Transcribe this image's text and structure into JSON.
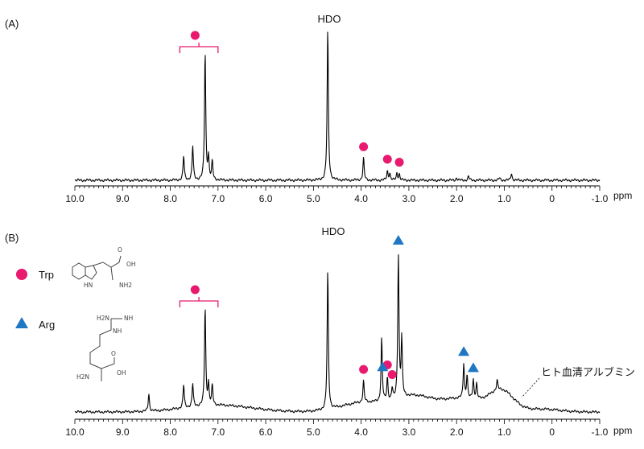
{
  "chart_data": [
    {
      "type": "line",
      "panel_label": "(A)",
      "xlabel": "ppm",
      "xlim": [
        10.0,
        -1.0
      ],
      "x_reversed": true,
      "ticks": [
        "10.0",
        "9.0",
        "8.0",
        "7.0",
        "6.0",
        "5.0",
        "4.0",
        "3.0",
        "2.0",
        "1.0",
        "0",
        "-1.0"
      ],
      "annotations": [
        {
          "text": "HDO",
          "x": 4.7
        }
      ],
      "markers": [
        {
          "symbol": "circle",
          "x": 7.48,
          "bracket": [
            7.8,
            7.0
          ]
        },
        {
          "symbol": "circle",
          "x": 3.95
        },
        {
          "symbol": "circle",
          "x": 3.45
        },
        {
          "symbol": "circle",
          "x": 3.2
        }
      ],
      "peaks": [
        {
          "x": 7.72,
          "height": 0.12
        },
        {
          "x": 7.53,
          "height": 0.17
        },
        {
          "x": 7.27,
          "height": 0.64
        },
        {
          "x": 7.2,
          "height": 0.11
        },
        {
          "x": 7.12,
          "height": 0.09
        },
        {
          "x": 4.7,
          "height": 0.75
        },
        {
          "x": 3.95,
          "height": 0.11
        },
        {
          "x": 3.45,
          "height": 0.045
        },
        {
          "x": 3.4,
          "height": 0.035
        },
        {
          "x": 3.25,
          "height": 0.035
        },
        {
          "x": 3.2,
          "height": 0.03
        },
        {
          "x": 2.0,
          "height": 0.012
        },
        {
          "x": 1.75,
          "height": 0.02
        },
        {
          "x": 1.1,
          "height": 0.012
        },
        {
          "x": 0.85,
          "height": 0.035
        }
      ]
    },
    {
      "type": "line",
      "panel_label": "(B)",
      "xlabel": "ppm",
      "xlim": [
        10.0,
        -1.0
      ],
      "x_reversed": true,
      "ticks": [
        "10.0",
        "9.0",
        "8.0",
        "7.0",
        "6.0",
        "5.0",
        "4.0",
        "3.0",
        "2.0",
        "1.0",
        "0",
        "-1.0"
      ],
      "annotations": [
        {
          "text": "HDO",
          "x": 4.7
        },
        {
          "text": "ヒト血清アルブミン",
          "x": 0.0
        }
      ],
      "legend": [
        {
          "symbol": "circle",
          "label": "Trp",
          "color": "#e8196e"
        },
        {
          "symbol": "triangle",
          "label": "Arg",
          "color": "#1f77c4"
        }
      ],
      "structures": {
        "trp": [
          "O",
          "OH",
          "NH2",
          "HN"
        ],
        "arg": [
          "H2N",
          "NH",
          "NH",
          "H2N",
          "OH",
          "O"
        ]
      },
      "markers": [
        {
          "symbol": "circle",
          "x": 7.48,
          "bracket": [
            7.8,
            7.0
          ]
        },
        {
          "symbol": "circle",
          "x": 3.95
        },
        {
          "symbol": "circle",
          "x": 3.45
        },
        {
          "symbol": "circle",
          "x": 3.35
        },
        {
          "symbol": "triangle",
          "x": 3.22
        },
        {
          "symbol": "triangle",
          "x": 3.55
        },
        {
          "symbol": "triangle",
          "x": 1.85
        },
        {
          "symbol": "triangle",
          "x": 1.65
        }
      ],
      "peaks": [
        {
          "x": 8.45,
          "height": 0.09
        },
        {
          "x": 7.72,
          "height": 0.12
        },
        {
          "x": 7.53,
          "height": 0.12
        },
        {
          "x": 7.27,
          "height": 0.51
        },
        {
          "x": 7.2,
          "height": 0.11
        },
        {
          "x": 7.12,
          "height": 0.1
        },
        {
          "x": 4.7,
          "height": 0.72
        },
        {
          "x": 3.95,
          "height": 0.11
        },
        {
          "x": 3.57,
          "height": 0.33
        },
        {
          "x": 3.45,
          "height": 0.12
        },
        {
          "x": 3.35,
          "height": 0.06
        },
        {
          "x": 3.22,
          "height": 0.75
        },
        {
          "x": 3.15,
          "height": 0.3
        },
        {
          "x": 1.85,
          "height": 0.18
        },
        {
          "x": 1.78,
          "height": 0.12
        },
        {
          "x": 1.65,
          "height": 0.1
        },
        {
          "x": 1.58,
          "height": 0.08
        },
        {
          "x": 1.15,
          "height": 0.05
        }
      ]
    }
  ],
  "colors": {
    "circle": "#e8196e",
    "triangle": "#1f77c4",
    "trace": "#000000"
  }
}
